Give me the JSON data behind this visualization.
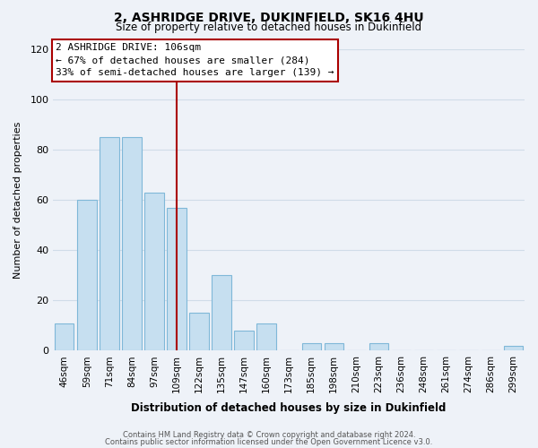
{
  "title": "2, ASHRIDGE DRIVE, DUKINFIELD, SK16 4HU",
  "subtitle": "Size of property relative to detached houses in Dukinfield",
  "xlabel": "Distribution of detached houses by size in Dukinfield",
  "ylabel": "Number of detached properties",
  "bar_labels": [
    "46sqm",
    "59sqm",
    "71sqm",
    "84sqm",
    "97sqm",
    "109sqm",
    "122sqm",
    "135sqm",
    "147sqm",
    "160sqm",
    "173sqm",
    "185sqm",
    "198sqm",
    "210sqm",
    "223sqm",
    "236sqm",
    "248sqm",
    "261sqm",
    "274sqm",
    "286sqm",
    "299sqm"
  ],
  "bar_values": [
    11,
    60,
    85,
    85,
    63,
    57,
    15,
    30,
    8,
    11,
    0,
    3,
    3,
    0,
    3,
    0,
    0,
    0,
    0,
    0,
    2
  ],
  "bar_color": "#c6dff0",
  "bar_edge_color": "#7fb8d8",
  "vline_position": 5.0,
  "vline_color": "#aa0000",
  "ylim": [
    0,
    120
  ],
  "yticks": [
    0,
    20,
    40,
    60,
    80,
    100,
    120
  ],
  "annotation_title": "2 ASHRIDGE DRIVE: 106sqm",
  "annotation_line1": "← 67% of detached houses are smaller (284)",
  "annotation_line2": "33% of semi-detached houses are larger (139) →",
  "annotation_box_color": "#ffffff",
  "annotation_box_edge": "#aa0000",
  "footer1": "Contains HM Land Registry data © Crown copyright and database right 2024.",
  "footer2": "Contains public sector information licensed under the Open Government Licence v3.0.",
  "background_color": "#eef2f8",
  "grid_color": "#d0dce8"
}
